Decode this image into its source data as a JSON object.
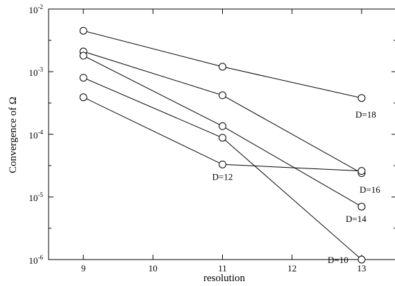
{
  "chart_data": {
    "type": "line",
    "xlabel": "resolution",
    "ylabel": "Convergence of Ω",
    "xlim": [
      8.5,
      13.5
    ],
    "ylim": [
      1e-06,
      0.01
    ],
    "y_scale": "log",
    "grid": false,
    "x_ticks": [
      {
        "value": 9,
        "label": "9"
      },
      {
        "value": 10,
        "label": "10"
      },
      {
        "value": 11,
        "label": "11"
      },
      {
        "value": 12,
        "label": "12"
      },
      {
        "value": 13,
        "label": "13"
      }
    ],
    "y_ticks": [
      {
        "value": 1e-06,
        "base": "10",
        "exp": "-6"
      },
      {
        "value": 1e-05,
        "base": "10",
        "exp": "-5"
      },
      {
        "value": 0.0001,
        "base": "10",
        "exp": "-4"
      },
      {
        "value": 0.001,
        "base": "10",
        "exp": "-3"
      },
      {
        "value": 0.01,
        "base": "10",
        "exp": "-2"
      }
    ],
    "marker": "open-circle",
    "series": [
      {
        "name": "D=18",
        "x": [
          9,
          11,
          13
        ],
        "y": [
          0.0045,
          0.0012,
          0.00038
        ]
      },
      {
        "name": "D=16",
        "x": [
          9,
          11,
          13
        ],
        "y": [
          0.0021,
          0.00042,
          2.4e-05
        ]
      },
      {
        "name": "D=14",
        "x": [
          9,
          11,
          13
        ],
        "y": [
          0.0018,
          0.000135,
          7e-06
        ]
      },
      {
        "name": "D=12",
        "x": [
          9,
          11,
          13
        ],
        "y": [
          0.00039,
          3.3e-05,
          2.6e-05
        ]
      },
      {
        "name": "D=10",
        "x": [
          9,
          11,
          13
        ],
        "y": [
          0.0008,
          8.8e-05,
          1e-06
        ]
      }
    ]
  }
}
